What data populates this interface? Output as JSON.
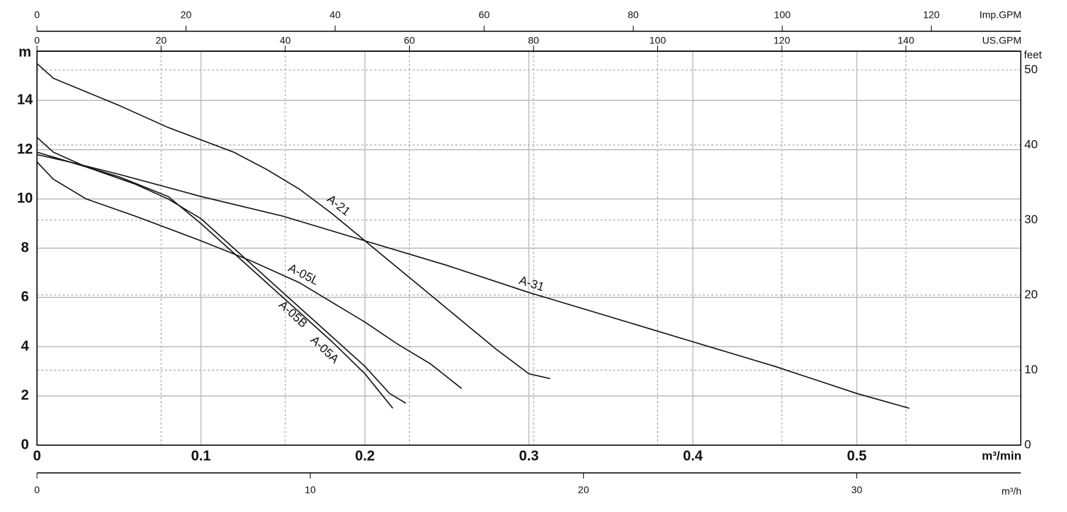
{
  "chart_data": {
    "type": "line",
    "x_label": "m³/min",
    "y_label": "m",
    "y2_label": "feet",
    "xlim": [
      0,
      0.6
    ],
    "xticks": [
      0,
      0.1,
      0.2,
      0.3,
      0.4,
      0.5
    ],
    "ylim": [
      0,
      16
    ],
    "yticks": [
      0,
      2,
      4,
      6,
      8,
      10,
      12,
      14
    ],
    "y2lim": [
      0,
      52.49
    ],
    "y2ticks": [
      0,
      10,
      20,
      30,
      40,
      50
    ],
    "us_gpm_axis": {
      "label": "US.GPM",
      "xlim": [
        0,
        158.5
      ],
      "xticks": [
        0,
        20,
        40,
        60,
        80,
        100,
        120,
        140
      ]
    },
    "imp_gpm_axis": {
      "label": "Imp.GPM",
      "xlim": [
        0,
        132
      ],
      "xticks": [
        0,
        20,
        40,
        60,
        80,
        100,
        120
      ]
    },
    "m3h_axis": {
      "label": "m³/h",
      "xlim": [
        0,
        36
      ],
      "xticks": [
        0,
        10,
        20,
        30
      ]
    },
    "grid": true,
    "series": [
      {
        "name": "A-21",
        "color": "#111111",
        "x": [
          0,
          0.01,
          0.05,
          0.08,
          0.1,
          0.12,
          0.14,
          0.16,
          0.18,
          0.2,
          0.22,
          0.24,
          0.26,
          0.28,
          0.3,
          0.313
        ],
        "values": [
          15.5,
          14.9,
          13.8,
          12.9,
          12.4,
          11.9,
          11.2,
          10.4,
          9.4,
          8.3,
          7.2,
          6.1,
          5.0,
          3.9,
          2.9,
          2.7
        ]
      },
      {
        "name": "A-31",
        "color": "#111111",
        "x": [
          0,
          0.02,
          0.05,
          0.1,
          0.15,
          0.2,
          0.25,
          0.3,
          0.35,
          0.4,
          0.45,
          0.5,
          0.532
        ],
        "values": [
          11.9,
          11.5,
          11.0,
          10.1,
          9.3,
          8.3,
          7.3,
          6.2,
          5.2,
          4.2,
          3.2,
          2.1,
          1.5
        ]
      },
      {
        "name": "A-05L",
        "color": "#111111",
        "x": [
          0,
          0.01,
          0.03,
          0.06,
          0.1,
          0.13,
          0.16,
          0.18,
          0.2,
          0.22,
          0.24,
          0.259
        ],
        "values": [
          11.5,
          10.8,
          10.0,
          9.3,
          8.3,
          7.5,
          6.6,
          5.8,
          5.0,
          4.1,
          3.3,
          2.3
        ]
      },
      {
        "name": "A-05B",
        "color": "#111111",
        "x": [
          0,
          0.01,
          0.03,
          0.06,
          0.08,
          0.1,
          0.12,
          0.14,
          0.16,
          0.18,
          0.2,
          0.215,
          0.225
        ],
        "values": [
          12.5,
          11.9,
          11.3,
          10.6,
          10.0,
          9.2,
          8.0,
          6.8,
          5.6,
          4.4,
          3.2,
          2.1,
          1.7
        ]
      },
      {
        "name": "A-05A",
        "color": "#111111",
        "x": [
          0,
          0.02,
          0.05,
          0.08,
          0.1,
          0.12,
          0.14,
          0.16,
          0.18,
          0.2,
          0.217
        ],
        "values": [
          11.8,
          11.5,
          10.9,
          10.1,
          9.0,
          7.8,
          6.6,
          5.4,
          4.2,
          2.9,
          1.5
        ]
      }
    ]
  }
}
